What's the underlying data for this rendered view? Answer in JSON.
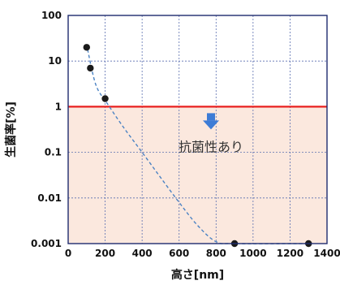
{
  "chart_data": {
    "type": "scatter",
    "title": "",
    "xlabel": "高さ[nm]",
    "ylabel": "生菌率[%]",
    "xlim": [
      0,
      1400
    ],
    "ylim": [
      0.001,
      100
    ],
    "y_scale": "log",
    "grid": true,
    "x_ticks": [
      0,
      200,
      400,
      600,
      800,
      1000,
      1200,
      1400
    ],
    "x_tick_labels": [
      "0",
      "200",
      "400",
      "600",
      "800",
      "1000",
      "1200",
      "1400"
    ],
    "y_ticks": [
      0.001,
      0.01,
      0.1,
      1,
      10,
      100
    ],
    "y_tick_labels": [
      "0.001",
      "0.01",
      "0.1",
      "1",
      "10",
      "100"
    ],
    "series": [
      {
        "values": [
          {
            "x": 100,
            "y": 20
          },
          {
            "x": 120,
            "y": 7
          },
          {
            "x": 200,
            "y": 1.5
          },
          {
            "x": 900,
            "y": 0.001
          },
          {
            "x": 1300,
            "y": 0.001
          }
        ]
      }
    ],
    "trend_line": [
      {
        "x": 105,
        "y": 18
      },
      {
        "x": 150,
        "y": 3
      },
      {
        "x": 210,
        "y": 1.2
      },
      {
        "x": 300,
        "y": 0.35
      },
      {
        "x": 400,
        "y": 0.1
      },
      {
        "x": 500,
        "y": 0.028
      },
      {
        "x": 600,
        "y": 0.008
      },
      {
        "x": 700,
        "y": 0.0025
      },
      {
        "x": 800,
        "y": 0.0011
      },
      {
        "x": 900,
        "y": 0.001
      },
      {
        "x": 1300,
        "y": 0.001
      }
    ],
    "threshold": {
      "y": 1
    },
    "annotation": "抗菌性あり",
    "colors": {
      "threshold_line": "#e8201f",
      "shaded_region": "#fbe8de",
      "trend_line": "#4a82c3",
      "points": "#1a1a1a",
      "grid": "#5a6fb0",
      "arrow": "#3d7cd6"
    }
  }
}
